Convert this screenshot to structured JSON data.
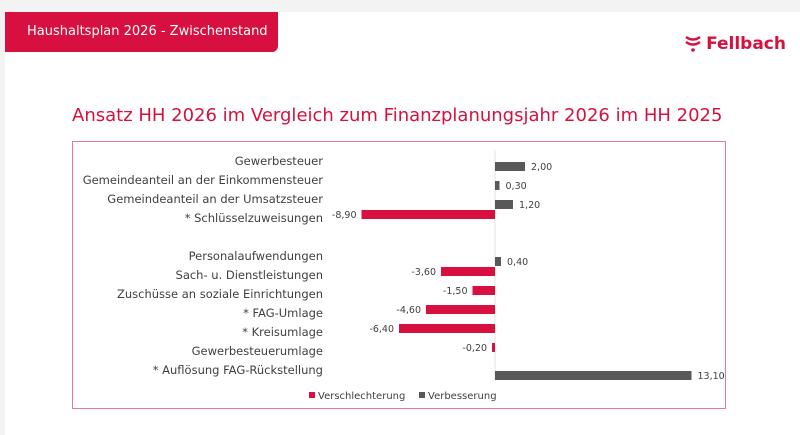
{
  "header": {
    "tab_title": "Haushaltsplan 2026 - Zwischenstand",
    "logo_text": "Fellbach"
  },
  "slide_title": "Ansatz HH 2026 im Vergleich zum Finanzplanungsjahr 2026 im HH 2025",
  "chart_data": {
    "type": "bar",
    "orientation": "horizontal",
    "categories": [
      "Gewerbesteuer",
      "Gemeindeanteil an der Einkommensteuer",
      "Gemeindeanteil an der Umsatzsteuer",
      "* Schlüsselzuweisungen",
      "",
      "Personalaufwendungen",
      "Sach- u. Dienstleistungen",
      "Zuschüsse an soziale Einrichtungen",
      "* FAG-Umlage",
      "* Kreisumlage",
      "Gewerbesteuerumlage",
      "* Auflösung FAG-Rückstellung"
    ],
    "values": [
      2.0,
      0.3,
      1.2,
      -8.9,
      null,
      0.4,
      -3.6,
      -1.5,
      -4.6,
      -6.4,
      -0.2,
      13.1
    ],
    "data_labels": [
      "2,00",
      "0,30",
      "1,20",
      "-8,90",
      "",
      "0,40",
      "-3,60",
      "-1,50",
      "-4,60",
      "-6,40",
      "-0,20",
      "13,10"
    ],
    "series": [
      {
        "name": "Verschlechterung",
        "color": "#d8103f"
      },
      {
        "name": "Verbesserung",
        "color": "#595959"
      }
    ],
    "legend": "bottom",
    "grid": false
  }
}
